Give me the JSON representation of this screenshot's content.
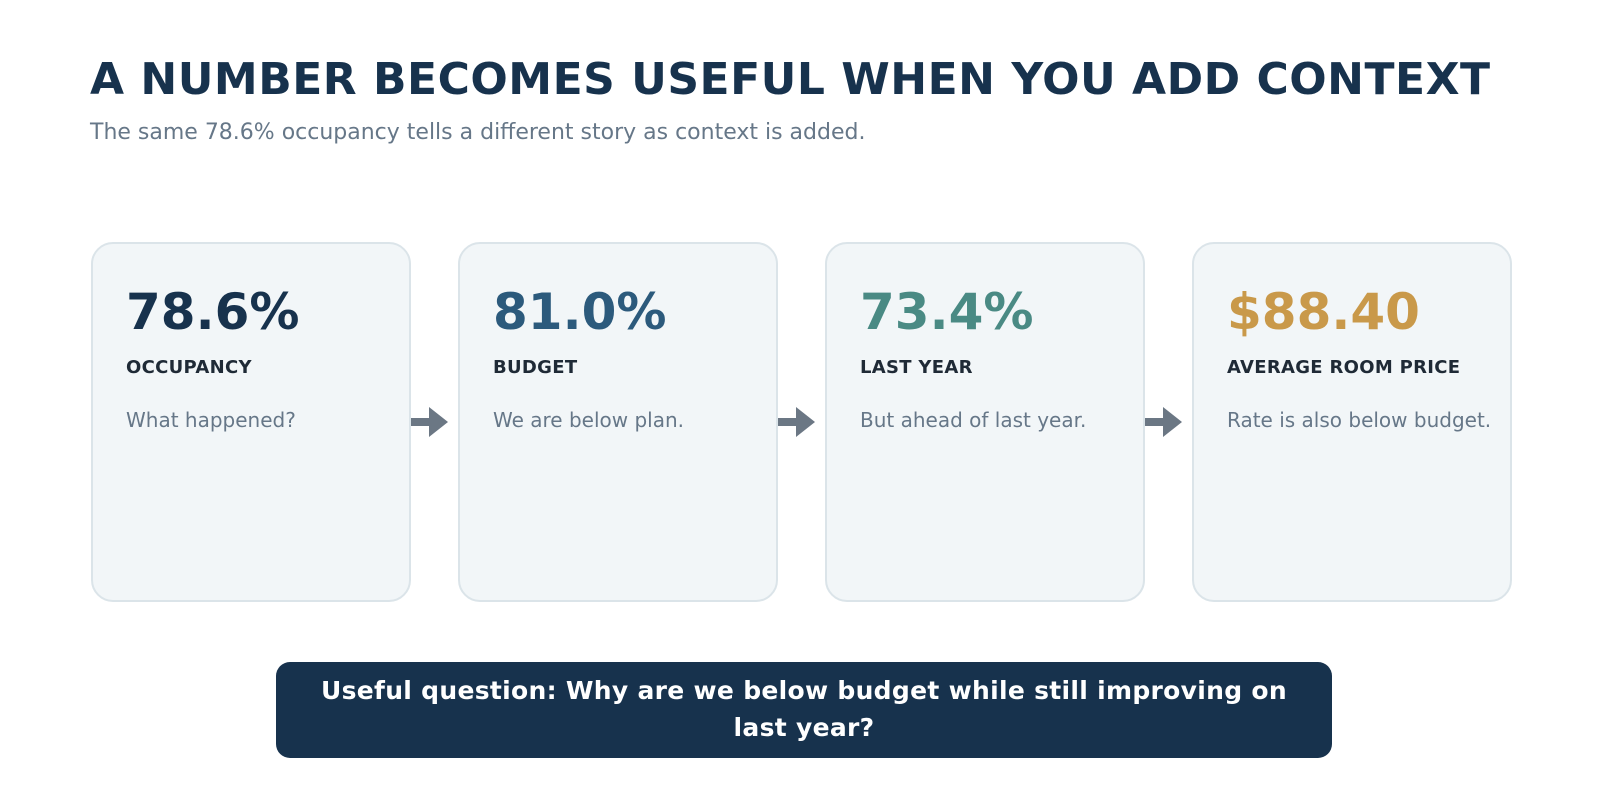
{
  "header": {
    "title": "A NUMBER BECOMES USEFUL WHEN YOU ADD CONTEXT",
    "subtitle": "The same 78.6% occupancy tells a different story as context is added."
  },
  "cards": [
    {
      "value": "78.6%",
      "label": "OCCUPANCY",
      "description": "What happened?",
      "color": "#17324d"
    },
    {
      "value": "81.0%",
      "label": "BUDGET",
      "description": "We are below plan.",
      "color": "#2c5a7c"
    },
    {
      "value": "73.4%",
      "label": "LAST YEAR",
      "description": "But ahead of last year.",
      "color": "#4a8a84"
    },
    {
      "value": "$88.40",
      "label": "AVERAGE ROOM PRICE",
      "description": "Rate is also below budget.",
      "color": "#c9994a"
    }
  ],
  "arrow_color": "#6b7784",
  "banner": {
    "text": "Useful question: Why are we below budget while still improving on last year?"
  }
}
